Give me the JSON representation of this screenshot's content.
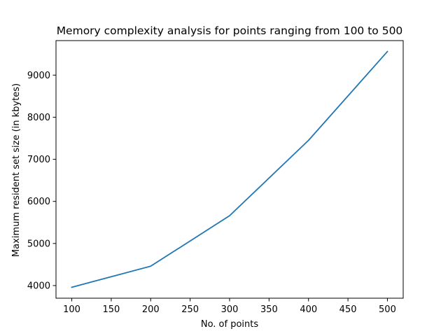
{
  "chart_data": {
    "type": "line",
    "title": "Memory complexity analysis for points ranging from 100 to 500",
    "xlabel": "No. of points",
    "ylabel": "Maximum resident set size (in kbytes)",
    "x": [
      100,
      200,
      300,
      400,
      500
    ],
    "series": [
      {
        "values": [
          3960,
          4460,
          5660,
          7450,
          9560
        ],
        "color": "#1f77b4"
      }
    ],
    "xlim": [
      80,
      520
    ],
    "ylim": [
      3700,
      9820
    ],
    "xticks": [
      100,
      150,
      200,
      250,
      300,
      350,
      400,
      450,
      500
    ],
    "yticks": [
      4000,
      5000,
      6000,
      7000,
      8000,
      9000
    ],
    "grid": false,
    "legend": "none"
  }
}
